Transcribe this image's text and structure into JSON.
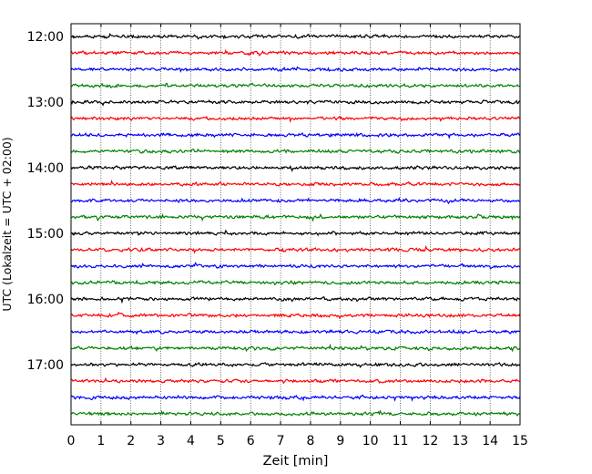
{
  "chart_data": {
    "type": "line",
    "title": "",
    "xlabel": "Zeit  [min]",
    "ylabel": "UTC (Lokalzeit = UTC + 02:00)",
    "xlim": [
      0,
      15
    ],
    "x_ticks": [
      "0",
      "1",
      "2",
      "3",
      "4",
      "5",
      "6",
      "7",
      "8",
      "9",
      "10",
      "11",
      "12",
      "13",
      "14",
      "15"
    ],
    "y_ticks": [
      "12:00",
      "13:00",
      "14:00",
      "15:00",
      "16:00",
      "17:00"
    ],
    "grid": "vertical dotted lines at each minute",
    "trace_interval_minutes": 15,
    "first_trace": "12:00",
    "last_trace": "17:45",
    "colors": [
      "#000000",
      "#ff0000",
      "#0000ff",
      "#008000"
    ],
    "series": [
      {
        "start": "12:00",
        "color": "#000000"
      },
      {
        "start": "12:15",
        "color": "#ff0000"
      },
      {
        "start": "12:30",
        "color": "#0000ff"
      },
      {
        "start": "12:45",
        "color": "#008000"
      },
      {
        "start": "13:00",
        "color": "#000000"
      },
      {
        "start": "13:15",
        "color": "#ff0000"
      },
      {
        "start": "13:30",
        "color": "#0000ff"
      },
      {
        "start": "13:45",
        "color": "#008000"
      },
      {
        "start": "14:00",
        "color": "#000000"
      },
      {
        "start": "14:15",
        "color": "#ff0000"
      },
      {
        "start": "14:30",
        "color": "#0000ff"
      },
      {
        "start": "14:45",
        "color": "#008000"
      },
      {
        "start": "15:00",
        "color": "#000000"
      },
      {
        "start": "15:15",
        "color": "#ff0000"
      },
      {
        "start": "15:30",
        "color": "#0000ff"
      },
      {
        "start": "15:45",
        "color": "#008000"
      },
      {
        "start": "16:00",
        "color": "#000000"
      },
      {
        "start": "16:15",
        "color": "#ff0000"
      },
      {
        "start": "16:30",
        "color": "#0000ff"
      },
      {
        "start": "16:45",
        "color": "#008000"
      },
      {
        "start": "17:00",
        "color": "#000000"
      },
      {
        "start": "17:15",
        "color": "#ff0000"
      },
      {
        "start": "17:30",
        "color": "#0000ff"
      },
      {
        "start": "17:45",
        "color": "#008000"
      }
    ]
  }
}
